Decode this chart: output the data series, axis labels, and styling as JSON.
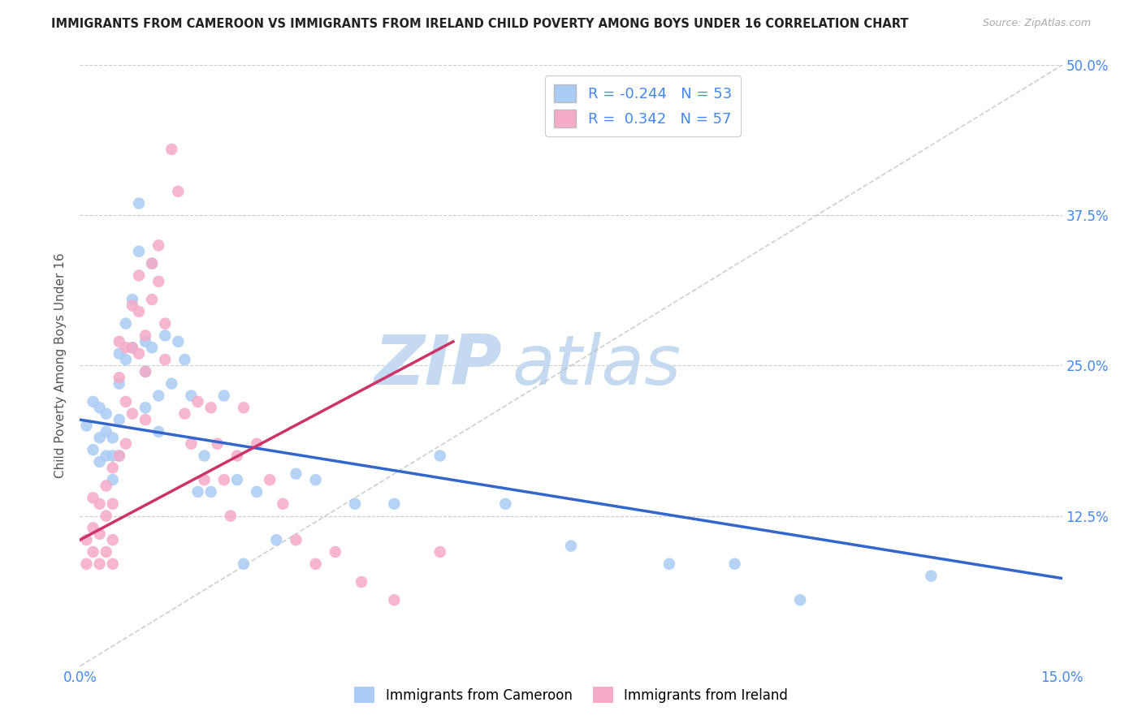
{
  "title": "IMMIGRANTS FROM CAMEROON VS IMMIGRANTS FROM IRELAND CHILD POVERTY AMONG BOYS UNDER 16 CORRELATION CHART",
  "source": "Source: ZipAtlas.com",
  "ylabel": "Child Poverty Among Boys Under 16",
  "xlim": [
    0.0,
    0.15
  ],
  "ylim": [
    0.0,
    0.5
  ],
  "xticks": [
    0.0,
    0.05,
    0.1,
    0.15
  ],
  "xtick_labels": [
    "0.0%",
    "",
    "",
    "15.0%"
  ],
  "yticks_left": [
    0.0,
    0.125,
    0.25,
    0.375,
    0.5
  ],
  "ytick_labels_left": [
    "",
    "",
    "",
    "",
    ""
  ],
  "yticks_right": [
    0.0,
    0.125,
    0.25,
    0.375,
    0.5
  ],
  "ytick_labels_right": [
    "",
    "12.5%",
    "25.0%",
    "37.5%",
    "50.0%"
  ],
  "R_cameroon": -0.244,
  "N_cameroon": 53,
  "R_ireland": 0.342,
  "N_ireland": 57,
  "color_cameroon": "#aaccf5",
  "color_ireland": "#f5aac8",
  "line_color_cameroon": "#3366cc",
  "line_color_ireland": "#cc3366",
  "diagonal_color": "#bbbbbb",
  "watermark_zip_color": "#c8dff5",
  "watermark_atlas_color": "#c8dff5",
  "background_color": "#ffffff",
  "cameroon_x": [
    0.001,
    0.002,
    0.002,
    0.003,
    0.003,
    0.003,
    0.004,
    0.004,
    0.004,
    0.005,
    0.005,
    0.005,
    0.006,
    0.006,
    0.006,
    0.006,
    0.007,
    0.007,
    0.008,
    0.008,
    0.009,
    0.009,
    0.01,
    0.01,
    0.01,
    0.011,
    0.011,
    0.012,
    0.012,
    0.013,
    0.014,
    0.015,
    0.016,
    0.017,
    0.018,
    0.019,
    0.02,
    0.022,
    0.024,
    0.025,
    0.027,
    0.03,
    0.033,
    0.036,
    0.042,
    0.048,
    0.055,
    0.065,
    0.075,
    0.09,
    0.1,
    0.11,
    0.13
  ],
  "cameroon_y": [
    0.2,
    0.22,
    0.18,
    0.215,
    0.19,
    0.17,
    0.21,
    0.195,
    0.175,
    0.19,
    0.175,
    0.155,
    0.26,
    0.235,
    0.205,
    0.175,
    0.285,
    0.255,
    0.305,
    0.265,
    0.385,
    0.345,
    0.27,
    0.245,
    0.215,
    0.335,
    0.265,
    0.225,
    0.195,
    0.275,
    0.235,
    0.27,
    0.255,
    0.225,
    0.145,
    0.175,
    0.145,
    0.225,
    0.155,
    0.085,
    0.145,
    0.105,
    0.16,
    0.155,
    0.135,
    0.135,
    0.175,
    0.135,
    0.1,
    0.085,
    0.085,
    0.055,
    0.075
  ],
  "ireland_x": [
    0.001,
    0.001,
    0.002,
    0.002,
    0.002,
    0.003,
    0.003,
    0.003,
    0.004,
    0.004,
    0.004,
    0.005,
    0.005,
    0.005,
    0.005,
    0.006,
    0.006,
    0.006,
    0.007,
    0.007,
    0.007,
    0.008,
    0.008,
    0.008,
    0.009,
    0.009,
    0.009,
    0.01,
    0.01,
    0.01,
    0.011,
    0.011,
    0.012,
    0.012,
    0.013,
    0.013,
    0.014,
    0.015,
    0.016,
    0.017,
    0.018,
    0.019,
    0.02,
    0.021,
    0.022,
    0.023,
    0.024,
    0.025,
    0.027,
    0.029,
    0.031,
    0.033,
    0.036,
    0.039,
    0.043,
    0.048,
    0.055
  ],
  "ireland_y": [
    0.105,
    0.085,
    0.14,
    0.115,
    0.095,
    0.135,
    0.11,
    0.085,
    0.15,
    0.125,
    0.095,
    0.165,
    0.135,
    0.105,
    0.085,
    0.27,
    0.24,
    0.175,
    0.265,
    0.22,
    0.185,
    0.3,
    0.265,
    0.21,
    0.325,
    0.295,
    0.26,
    0.275,
    0.245,
    0.205,
    0.335,
    0.305,
    0.35,
    0.32,
    0.285,
    0.255,
    0.43,
    0.395,
    0.21,
    0.185,
    0.22,
    0.155,
    0.215,
    0.185,
    0.155,
    0.125,
    0.175,
    0.215,
    0.185,
    0.155,
    0.135,
    0.105,
    0.085,
    0.095,
    0.07,
    0.055,
    0.095
  ],
  "cam_line_x": [
    0.0,
    0.15
  ],
  "cam_line_y": [
    0.205,
    0.073
  ],
  "ire_line_x": [
    0.0,
    0.057
  ],
  "ire_line_y": [
    0.105,
    0.27
  ]
}
